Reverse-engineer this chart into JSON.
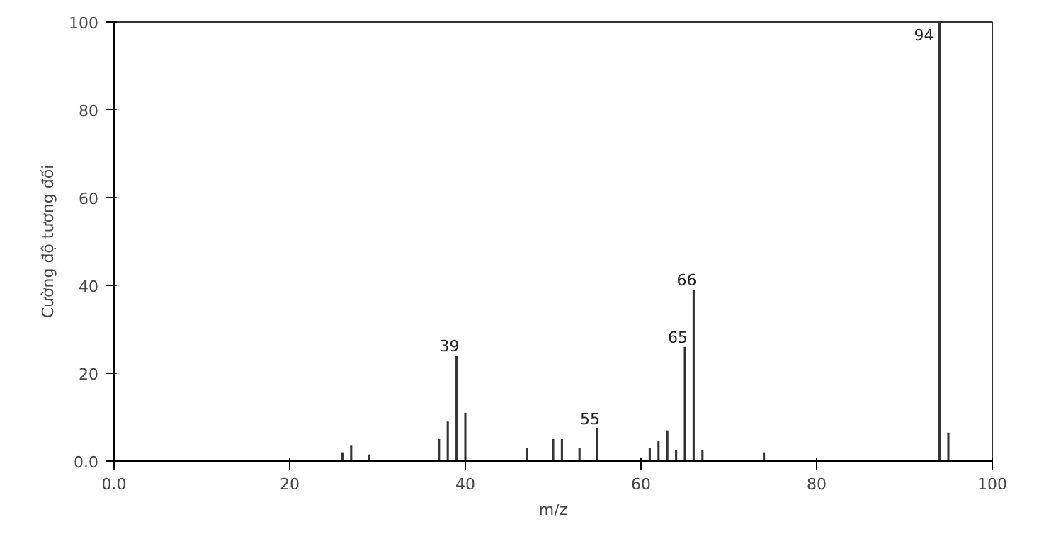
{
  "chart_data": {
    "type": "bar",
    "xlabel": "m/z",
    "ylabel": "Cường độ tương đối",
    "x": [
      26,
      27,
      29,
      37,
      38,
      39,
      40,
      47,
      50,
      51,
      53,
      55,
      61,
      62,
      63,
      64,
      65,
      66,
      67,
      74,
      94,
      95
    ],
    "series": [
      {
        "color": "#333333",
        "values": [
          2,
          3.5,
          1.5,
          5,
          9,
          24,
          11,
          3,
          5,
          5,
          3,
          7.5,
          3,
          4.5,
          7,
          2.5,
          26,
          39,
          2.5,
          2,
          100,
          6.5
        ]
      }
    ],
    "annotations": [
      {
        "text": "39",
        "x": 39,
        "y": 24
      },
      {
        "text": "55",
        "x": 55,
        "y": 7.5
      },
      {
        "text": "65",
        "x": 65,
        "y": 26
      },
      {
        "text": "66",
        "x": 66,
        "y": 39
      },
      {
        "text": "94",
        "x": 94,
        "y": 100
      }
    ],
    "xlim": [
      0,
      100
    ],
    "ylim": [
      0,
      100
    ],
    "xticks": [
      {
        "value": 0,
        "label": "0.0"
      },
      20,
      40,
      60,
      80,
      100
    ],
    "yticks": [
      {
        "value": 0,
        "label": "0.0"
      },
      20,
      40,
      60,
      80,
      100
    ],
    "grid": false
  }
}
